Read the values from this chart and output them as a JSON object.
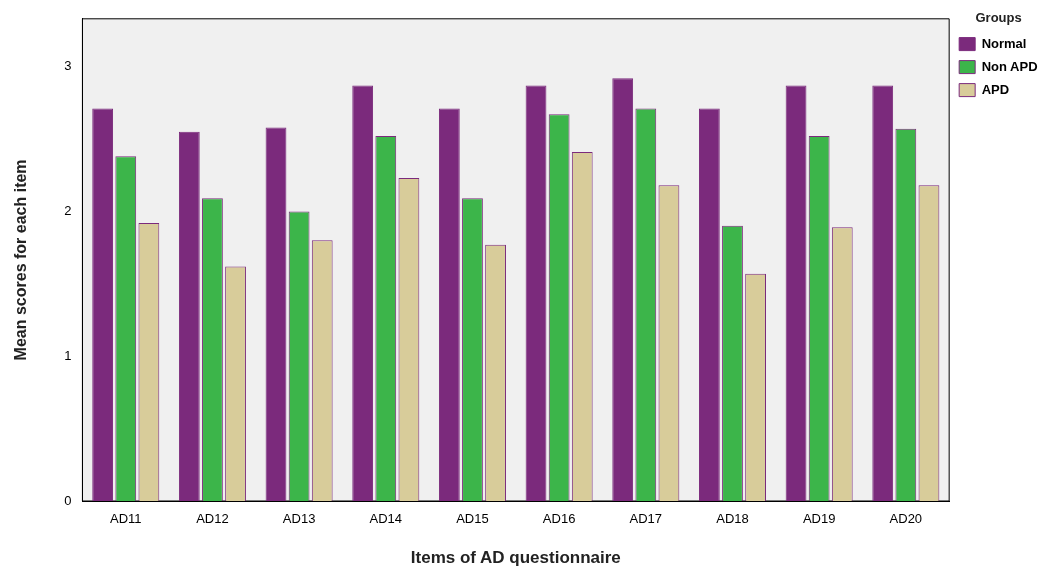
{
  "chart_data": {
    "type": "bar",
    "xlabel": "Items of AD questionnaire",
    "ylabel": "Mean scores for each item",
    "legend_title": "Groups",
    "legend": "top right",
    "grid": false,
    "categories": [
      "AD11",
      "AD12",
      "AD13",
      "AD14",
      "AD15",
      "AD16",
      "AD17",
      "AD18",
      "AD19",
      "AD20"
    ],
    "series": [
      {
        "name": "Normal",
        "color": "#7b2a7c",
        "values": [
          2.71,
          2.55,
          2.58,
          2.87,
          2.71,
          2.87,
          2.92,
          2.71,
          2.87,
          2.87
        ]
      },
      {
        "name": "Non APD",
        "color": "#3cb54a",
        "values": [
          2.38,
          2.09,
          2.0,
          2.52,
          2.09,
          2.67,
          2.71,
          1.9,
          2.52,
          2.57
        ]
      },
      {
        "name": "APD",
        "color": "#d8cc9a",
        "values": [
          1.92,
          1.62,
          1.8,
          2.23,
          1.77,
          2.41,
          2.18,
          1.57,
          1.89,
          2.18
        ]
      }
    ],
    "ylim": [
      0,
      3.33
    ],
    "yticks": [
      0,
      1,
      2,
      3
    ]
  }
}
